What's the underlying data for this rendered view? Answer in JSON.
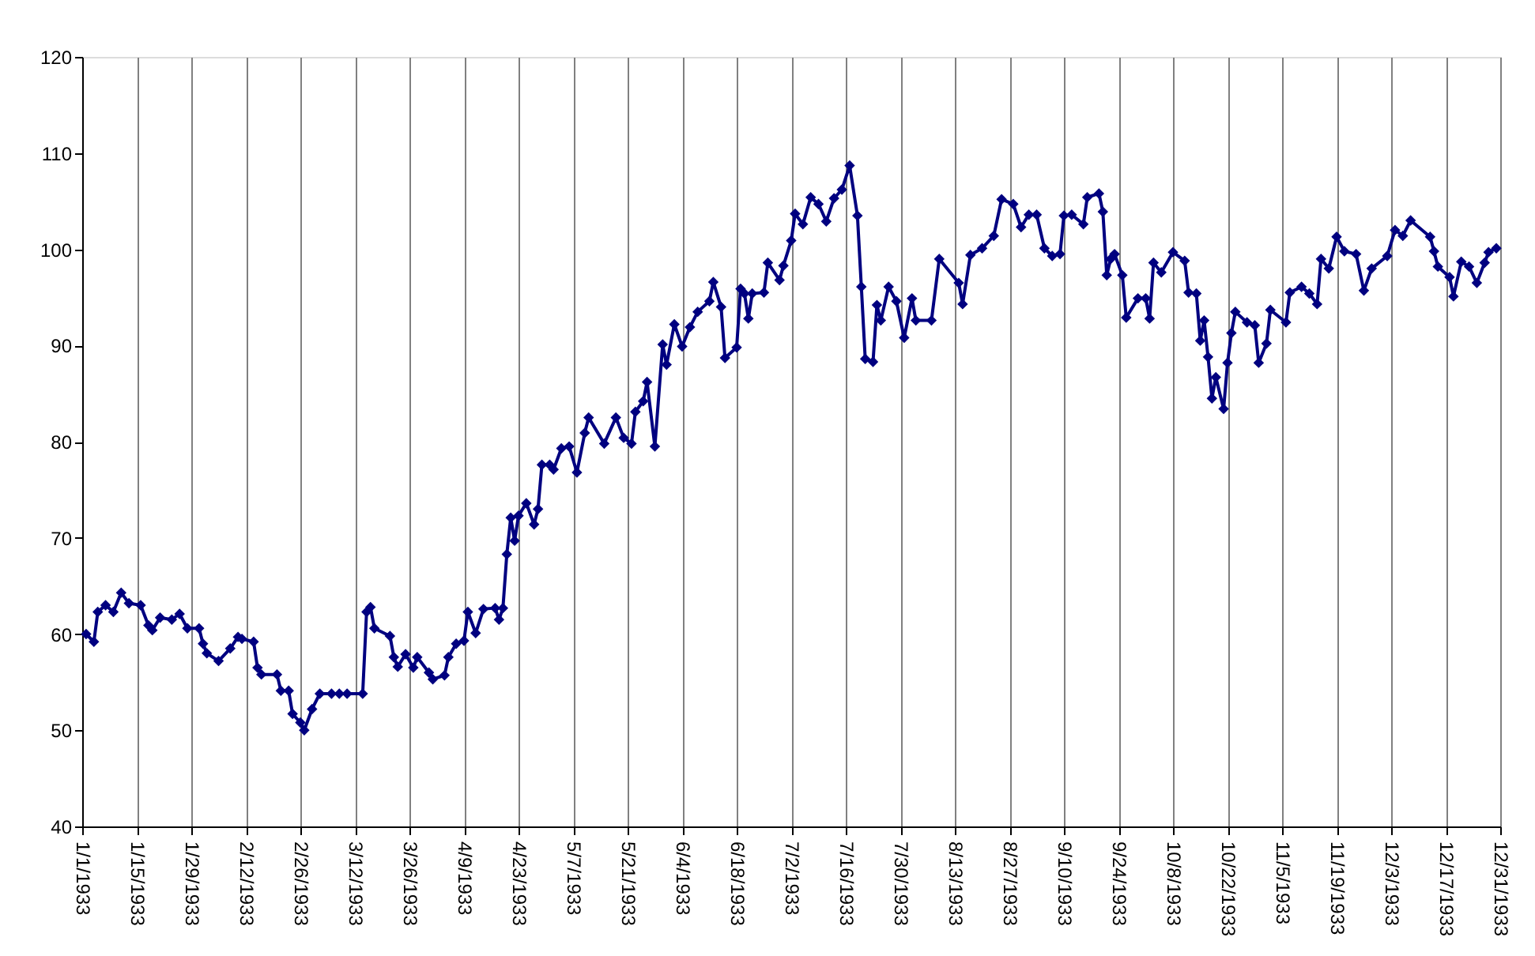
{
  "chart_data": {
    "type": "line",
    "x": [
      "1933-01-02",
      "1933-01-04",
      "1933-01-05",
      "1933-01-07",
      "1933-01-09",
      "1933-01-11",
      "1933-01-13",
      "1933-01-16",
      "1933-01-18",
      "1933-01-19",
      "1933-01-21",
      "1933-01-24",
      "1933-01-26",
      "1933-01-28",
      "1933-01-31",
      "1933-02-01",
      "1933-02-02",
      "1933-02-05",
      "1933-02-08",
      "1933-02-10",
      "1933-02-11",
      "1933-02-14",
      "1933-02-15",
      "1933-02-16",
      "1933-02-20",
      "1933-02-21",
      "1933-02-23",
      "1933-02-24",
      "1933-02-26",
      "1933-02-27",
      "1933-03-01",
      "1933-03-03",
      "1933-03-06",
      "1933-03-08",
      "1933-03-10",
      "1933-03-14",
      "1933-03-15",
      "1933-03-16",
      "1933-03-17",
      "1933-03-21",
      "1933-03-22",
      "1933-03-23",
      "1933-03-25",
      "1933-03-27",
      "1933-03-28",
      "1933-03-31",
      "1933-04-01",
      "1933-04-04",
      "1933-04-05",
      "1933-04-07",
      "1933-04-09",
      "1933-04-10",
      "1933-04-12",
      "1933-04-14",
      "1933-04-17",
      "1933-04-18",
      "1933-04-19",
      "1933-04-20",
      "1933-04-21",
      "1933-04-22",
      "1933-04-23",
      "1933-04-25",
      "1933-04-27",
      "1933-04-28",
      "1933-04-29",
      "1933-05-01",
      "1933-05-02",
      "1933-05-04",
      "1933-05-06",
      "1933-05-08",
      "1933-05-10",
      "1933-05-11",
      "1933-05-15",
      "1933-05-18",
      "1933-05-20",
      "1933-05-22",
      "1933-05-23",
      "1933-05-25",
      "1933-05-26",
      "1933-05-28",
      "1933-05-30",
      "1933-05-31",
      "1933-06-02",
      "1933-06-04",
      "1933-06-06",
      "1933-06-08",
      "1933-06-11",
      "1933-06-12",
      "1933-06-14",
      "1933-06-15",
      "1933-06-18",
      "1933-06-19",
      "1933-06-20",
      "1933-06-21",
      "1933-06-22",
      "1933-06-25",
      "1933-06-26",
      "1933-06-29",
      "1933-06-30",
      "1933-07-02",
      "1933-07-03",
      "1933-07-05",
      "1933-07-07",
      "1933-07-09",
      "1933-07-11",
      "1933-07-13",
      "1933-07-15",
      "1933-07-17",
      "1933-07-19",
      "1933-07-20",
      "1933-07-21",
      "1933-07-23",
      "1933-07-24",
      "1933-07-25",
      "1933-07-27",
      "1933-07-29",
      "1933-07-31",
      "1933-08-02",
      "1933-08-03",
      "1933-08-07",
      "1933-08-09",
      "1933-08-14",
      "1933-08-15",
      "1933-08-17",
      "1933-08-20",
      "1933-08-23",
      "1933-08-25",
      "1933-08-28",
      "1933-08-30",
      "1933-09-01",
      "1933-09-03",
      "1933-09-05",
      "1933-09-07",
      "1933-09-09",
      "1933-09-10",
      "1933-09-12",
      "1933-09-15",
      "1933-09-16",
      "1933-09-19",
      "1933-09-20",
      "1933-09-21",
      "1933-09-22",
      "1933-09-23",
      "1933-09-25",
      "1933-09-26",
      "1933-09-29",
      "1933-10-01",
      "1933-10-02",
      "1933-10-03",
      "1933-10-05",
      "1933-10-08",
      "1933-10-11",
      "1933-10-12",
      "1933-10-14",
      "1933-10-15",
      "1933-10-16",
      "1933-10-17",
      "1933-10-18",
      "1933-10-19",
      "1933-10-21",
      "1933-10-22",
      "1933-10-23",
      "1933-10-24",
      "1933-10-27",
      "1933-10-29",
      "1933-10-30",
      "1933-11-01",
      "1933-11-02",
      "1933-11-06",
      "1933-11-07",
      "1933-11-10",
      "1933-11-12",
      "1933-11-14",
      "1933-11-15",
      "1933-11-17",
      "1933-11-19",
      "1933-11-21",
      "1933-11-24",
      "1933-11-26",
      "1933-11-28",
      "1933-12-02",
      "1933-12-04",
      "1933-12-06",
      "1933-12-08",
      "1933-12-13",
      "1933-12-14",
      "1933-12-15",
      "1933-12-18",
      "1933-12-19",
      "1933-12-21",
      "1933-12-23",
      "1933-12-25",
      "1933-12-27",
      "1933-12-28",
      "1933-12-30"
    ],
    "series": [
      {
        "color": "#000080",
        "values": [
          60.0,
          59.2,
          62.3,
          63.0,
          62.3,
          64.3,
          63.2,
          63.0,
          60.9,
          60.4,
          61.7,
          61.5,
          62.1,
          60.6,
          60.6,
          59.0,
          58.0,
          57.2,
          58.5,
          59.7,
          59.5,
          59.2,
          56.5,
          55.8,
          55.8,
          54.1,
          54.1,
          51.7,
          50.8,
          50.0,
          52.2,
          53.8,
          53.8,
          53.8,
          53.8,
          53.8,
          62.3,
          62.8,
          60.6,
          59.8,
          57.6,
          56.6,
          57.9,
          56.5,
          57.6,
          56.0,
          55.3,
          55.7,
          57.6,
          59.0,
          59.3,
          62.3,
          60.1,
          62.6,
          62.7,
          61.5,
          62.7,
          68.3,
          72.1,
          69.7,
          72.3,
          73.6,
          71.4,
          73.0,
          77.6,
          77.6,
          77.1,
          79.3,
          79.5,
          76.8,
          80.9,
          82.5,
          79.8,
          82.5,
          80.4,
          79.8,
          83.1,
          84.2,
          86.2,
          79.5,
          90.1,
          88.0,
          92.2,
          89.9,
          91.9,
          93.5,
          94.6,
          96.6,
          94.0,
          88.7,
          89.8,
          95.9,
          95.4,
          92.8,
          95.4,
          95.5,
          98.6,
          96.8,
          98.3,
          100.9,
          103.7,
          102.6,
          105.4,
          104.7,
          102.9,
          105.3,
          106.2,
          108.7,
          103.5,
          96.1,
          88.6,
          88.3,
          94.2,
          92.6,
          96.1,
          94.6,
          90.8,
          94.9,
          92.6,
          92.6,
          99.0,
          96.5,
          94.3,
          99.4,
          100.1,
          101.4,
          105.2,
          104.7,
          102.3,
          103.6,
          103.6,
          100.1,
          99.3,
          99.5,
          103.5,
          103.6,
          102.6,
          105.4,
          105.8,
          103.9,
          97.3,
          99.0,
          99.5,
          97.3,
          92.9,
          94.9,
          94.9,
          92.8,
          98.6,
          97.6,
          99.7,
          98.8,
          95.5,
          95.4,
          90.5,
          92.6,
          88.8,
          84.5,
          86.7,
          83.4,
          88.2,
          91.3,
          93.5,
          92.4,
          92.1,
          88.2,
          90.2,
          93.7,
          92.4,
          95.5,
          96.1,
          95.4,
          94.3,
          99.0,
          98.0,
          101.3,
          99.8,
          99.5,
          95.7,
          98.0,
          99.3,
          102.0,
          101.4,
          103.0,
          101.3,
          99.8,
          98.2,
          97.1,
          95.1,
          98.7,
          98.2,
          96.5,
          98.6,
          99.7,
          100.1
        ]
      }
    ],
    "xlim": [
      "1933-01-01",
      "1933-12-31"
    ],
    "xticks": [
      {
        "value": "1933-01-01",
        "label": "1/1/1933"
      },
      {
        "value": "1933-01-15",
        "label": "1/15/1933"
      },
      {
        "value": "1933-01-29",
        "label": "1/29/1933"
      },
      {
        "value": "1933-02-12",
        "label": "2/12/1933"
      },
      {
        "value": "1933-02-26",
        "label": "2/26/1933"
      },
      {
        "value": "1933-03-12",
        "label": "3/12/1933"
      },
      {
        "value": "1933-03-26",
        "label": "3/26/1933"
      },
      {
        "value": "1933-04-09",
        "label": "4/9/1933"
      },
      {
        "value": "1933-04-23",
        "label": "4/23/1933"
      },
      {
        "value": "1933-05-07",
        "label": "5/7/1933"
      },
      {
        "value": "1933-05-21",
        "label": "5/21/1933"
      },
      {
        "value": "1933-06-04",
        "label": "6/4/1933"
      },
      {
        "value": "1933-06-18",
        "label": "6/18/1933"
      },
      {
        "value": "1933-07-02",
        "label": "7/2/1933"
      },
      {
        "value": "1933-07-16",
        "label": "7/16/1933"
      },
      {
        "value": "1933-07-30",
        "label": "7/30/1933"
      },
      {
        "value": "1933-08-13",
        "label": "8/13/1933"
      },
      {
        "value": "1933-08-27",
        "label": "8/27/1933"
      },
      {
        "value": "1933-09-10",
        "label": "9/10/1933"
      },
      {
        "value": "1933-09-24",
        "label": "9/24/1933"
      },
      {
        "value": "1933-10-08",
        "label": "10/8/1933"
      },
      {
        "value": "1933-10-22",
        "label": "10/22/1933"
      },
      {
        "value": "1933-11-05",
        "label": "11/5/1933"
      },
      {
        "value": "1933-11-19",
        "label": "11/19/1933"
      },
      {
        "value": "1933-12-03",
        "label": "12/3/1933"
      },
      {
        "value": "1933-12-17",
        "label": "12/17/1933"
      },
      {
        "value": "1933-12-31",
        "label": "12/31/1933"
      }
    ],
    "ylim": [
      40,
      120
    ],
    "yticks": [
      40,
      50,
      60,
      70,
      80,
      90,
      100,
      110,
      120
    ],
    "grid": "x",
    "marker": "diamond",
    "line_style": "solid"
  }
}
